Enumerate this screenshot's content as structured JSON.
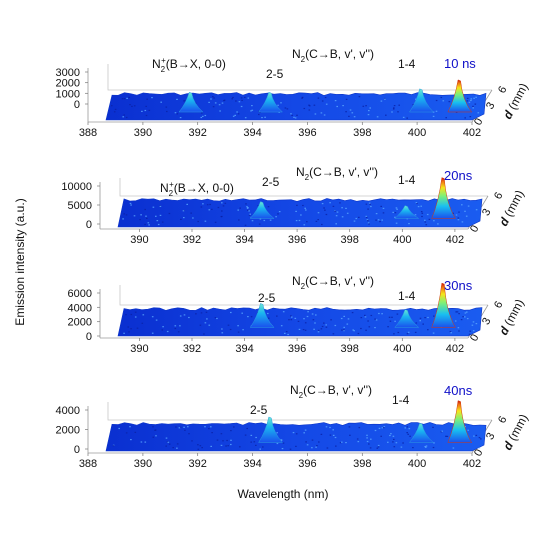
{
  "figure": {
    "ylabel": "Emission intensity (a.u.)",
    "xlabel": "Wavelength (nm)",
    "depth_label_italic": "d",
    "depth_label_unit": " (mm)"
  },
  "chart_data": [
    {
      "type": "area",
      "time_label": "10 ns",
      "x_ticks": [
        "388",
        "390",
        "392",
        "394",
        "396",
        "398",
        "400",
        "402"
      ],
      "z_ticks": [
        "3000",
        "2000",
        "1000",
        "0"
      ],
      "d_ticks": [
        "6",
        "3",
        "0"
      ],
      "xlim": [
        388,
        402
      ],
      "zlim": [
        0,
        3000
      ],
      "dlim": [
        0,
        6
      ],
      "baseline": 700,
      "annotations": [
        {
          "text": "N2+(B→X, 0-0)",
          "base": "N",
          "sub": "2",
          "sup": "+",
          "rest": "(B→X, 0-0)"
        },
        {
          "text": "2-5"
        },
        {
          "text": "N2(C→B, v', v'')",
          "base": "N",
          "sub": "2",
          "rest": "(C→B, v', v'')"
        },
        {
          "text": "1-4"
        }
      ],
      "peaks": [
        {
          "x": 391.4,
          "value": 1500
        },
        {
          "x": 394.3,
          "value": 1500
        },
        {
          "x": 399.8,
          "value": 1800
        },
        {
          "x": 401.2,
          "value": 2600
        }
      ]
    },
    {
      "type": "area",
      "time_label": "20ns",
      "x_ticks": [
        "390",
        "392",
        "394",
        "396",
        "398",
        "400",
        "402"
      ],
      "z_ticks": [
        "10000",
        "5000",
        "0"
      ],
      "d_ticks": [
        "6",
        "3",
        "0"
      ],
      "xlim": [
        388.5,
        402.5
      ],
      "zlim": [
        0,
        10000
      ],
      "dlim": [
        0,
        6
      ],
      "baseline": 500,
      "annotations": [
        {
          "text": "N2(C→B, v', v'')",
          "base": "N",
          "sub": "2",
          "rest": "(C→B, v', v'')"
        },
        {
          "text": "N2+(B→X, 0-0)",
          "base": "N",
          "sub": "2",
          "sup": "+",
          "rest": "(B→X, 0-0)"
        },
        {
          "text": "2-5"
        },
        {
          "text": "1-4"
        }
      ],
      "peaks": [
        {
          "x": 394.3,
          "value": 3500
        },
        {
          "x": 399.8,
          "value": 2500
        },
        {
          "x": 401.2,
          "value": 9500
        }
      ]
    },
    {
      "type": "area",
      "time_label": "30ns",
      "x_ticks": [
        "390",
        "392",
        "394",
        "396",
        "398",
        "400",
        "402"
      ],
      "z_ticks": [
        "6000",
        "4000",
        "2000",
        "0"
      ],
      "d_ticks": [
        "6",
        "3",
        "0"
      ],
      "xlim": [
        388.5,
        402.5
      ],
      "zlim": [
        0,
        6000
      ],
      "dlim": [
        0,
        6
      ],
      "baseline": 400,
      "annotations": [
        {
          "text": "N2(C→B, v', v'')",
          "base": "N",
          "sub": "2",
          "rest": "(C→B, v', v'')"
        },
        {
          "text": "2-5"
        },
        {
          "text": "1-4"
        }
      ],
      "peaks": [
        {
          "x": 394.3,
          "value": 2800
        },
        {
          "x": 399.8,
          "value": 2000
        },
        {
          "x": 401.2,
          "value": 5500
        }
      ]
    },
    {
      "type": "area",
      "time_label": "40ns",
      "x_ticks": [
        "388",
        "390",
        "392",
        "394",
        "396",
        "398",
        "400",
        "402"
      ],
      "z_ticks": [
        "4000",
        "2000",
        "0"
      ],
      "d_ticks": [
        "6",
        "3",
        "0"
      ],
      "xlim": [
        388,
        402
      ],
      "zlim": [
        0,
        4000
      ],
      "dlim": [
        0,
        6
      ],
      "baseline": 300,
      "annotations": [
        {
          "text": "N2(C→B, v', v'')",
          "base": "N",
          "sub": "2",
          "rest": "(C→B, v', v'')"
        },
        {
          "text": "2-5"
        },
        {
          "text": "1-4"
        }
      ],
      "peaks": [
        {
          "x": 394.3,
          "value": 2200
        },
        {
          "x": 399.8,
          "value": 1600
        },
        {
          "x": 401.2,
          "value": 3800
        }
      ]
    }
  ]
}
